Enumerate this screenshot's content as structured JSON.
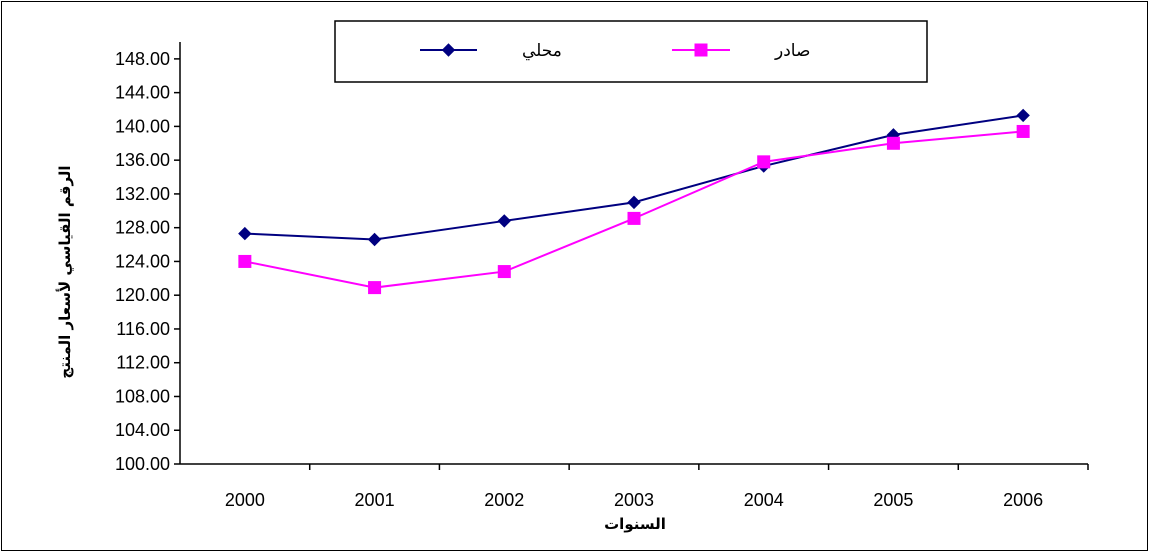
{
  "chart_data": {
    "type": "line",
    "title": "",
    "xlabel": "السنوات",
    "ylabel": "الرقم القياسي لأسعار المنتج",
    "categories": [
      "2000",
      "2001",
      "2002",
      "2003",
      "2004",
      "2005",
      "2006"
    ],
    "y_ticks": [
      "100.00",
      "104.00",
      "108.00",
      "112.00",
      "116.00",
      "120.00",
      "124.00",
      "128.00",
      "132.00",
      "136.00",
      "140.00",
      "144.00",
      "148.00"
    ],
    "ylim": [
      100,
      150
    ],
    "grid": false,
    "legend_position": "top",
    "series": [
      {
        "name": "محلي",
        "values": [
          127.3,
          126.6,
          128.8,
          131.0,
          135.3,
          139.0,
          141.3
        ],
        "color": "#000080",
        "marker": "diamond"
      },
      {
        "name": "صادر",
        "values": [
          124.0,
          120.9,
          122.8,
          129.1,
          135.8,
          138.0,
          139.4
        ],
        "color": "#FF00FF",
        "marker": "square"
      }
    ]
  }
}
